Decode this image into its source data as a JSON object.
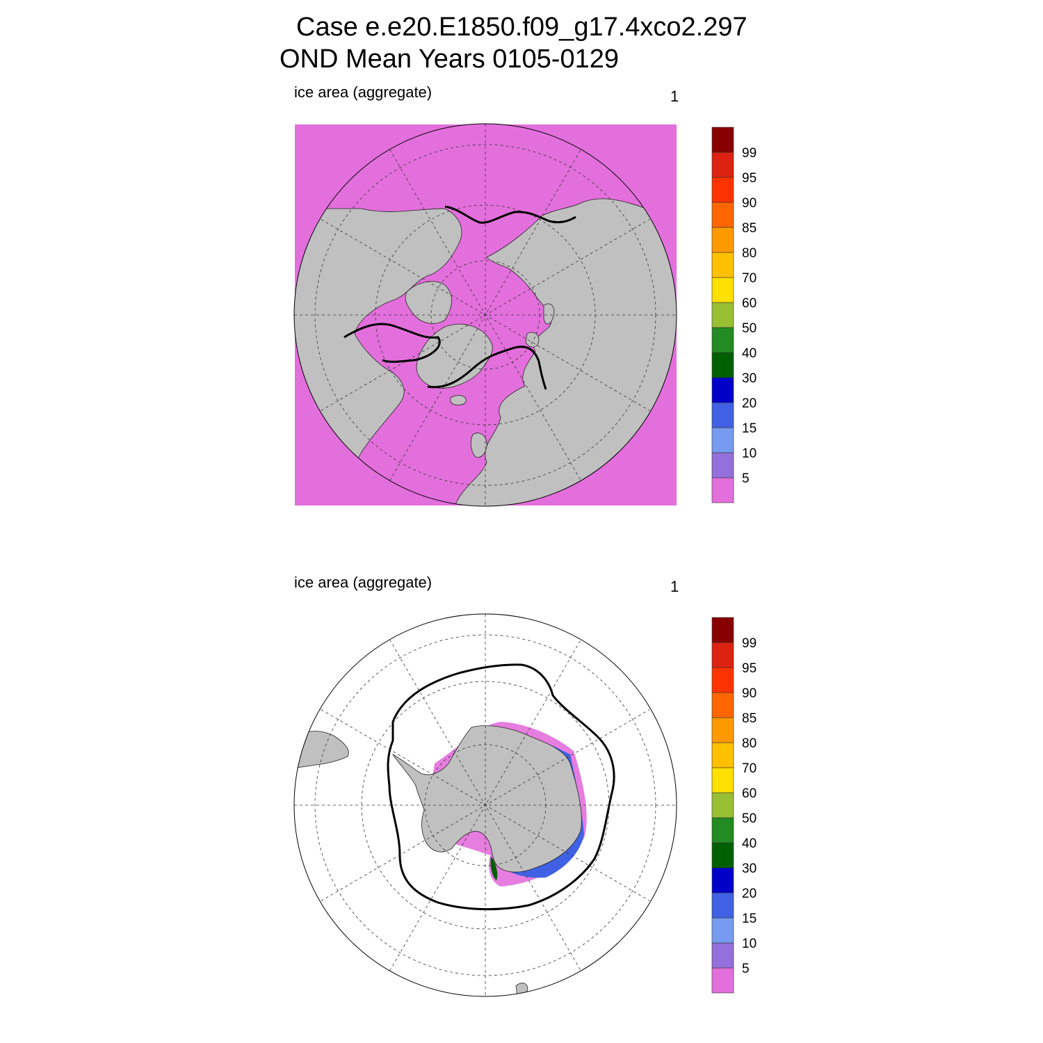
{
  "title": {
    "line1": "Case e.e20.E1850.f09_g17.4xco2.297",
    "line2": "OND Mean   Years 0105-0129"
  },
  "panels": [
    {
      "id": "north",
      "left_title": "ice area  (aggregate)",
      "right_title": "1"
    },
    {
      "id": "south",
      "left_title": "ice area  (aggregate)",
      "right_title": "1"
    }
  ],
  "colorbar": {
    "labels": [
      "5",
      "10",
      "15",
      "20",
      "30",
      "40",
      "50",
      "60",
      "70",
      "80",
      "85",
      "90",
      "95",
      "99"
    ],
    "colors": [
      "#e36fdc",
      "#9370db",
      "#779bf0",
      "#4061e4",
      "#0000c8",
      "#006000",
      "#228b22",
      "#99bf33",
      "#ffe000",
      "#ffc000",
      "#ff9900",
      "#ff6600",
      "#ff3300",
      "#dd2211",
      "#880000"
    ]
  },
  "colors": {
    "land": "#c0c0c0",
    "open_water": "#e36fdc",
    "ice_edge": "#000000"
  }
}
